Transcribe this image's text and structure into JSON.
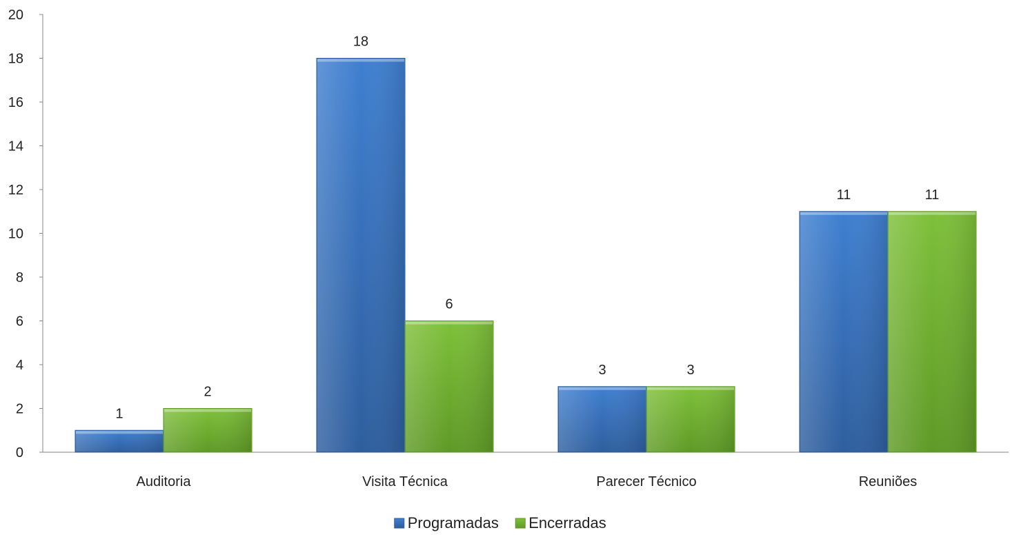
{
  "chart_data": {
    "type": "bar",
    "title": "",
    "xlabel": "",
    "ylabel": "",
    "categories": [
      "Auditoria",
      "Visita Técnica",
      "Parecer Técnico",
      "Reuniões"
    ],
    "series": [
      {
        "name": "Programadas",
        "values": [
          1,
          18,
          3,
          11
        ],
        "color": "#3F7FD0",
        "color_dark": "#2E5E9E"
      },
      {
        "name": "Encerradas",
        "values": [
          2,
          6,
          3,
          11
        ],
        "color": "#7EC03A",
        "color_dark": "#5E9A26"
      }
    ],
    "ylim": [
      0,
      20
    ],
    "yticks": [
      0,
      2,
      4,
      6,
      8,
      10,
      12,
      14,
      16,
      18,
      20
    ],
    "grid": false,
    "data_labels": true,
    "legend_position": "bottom"
  }
}
